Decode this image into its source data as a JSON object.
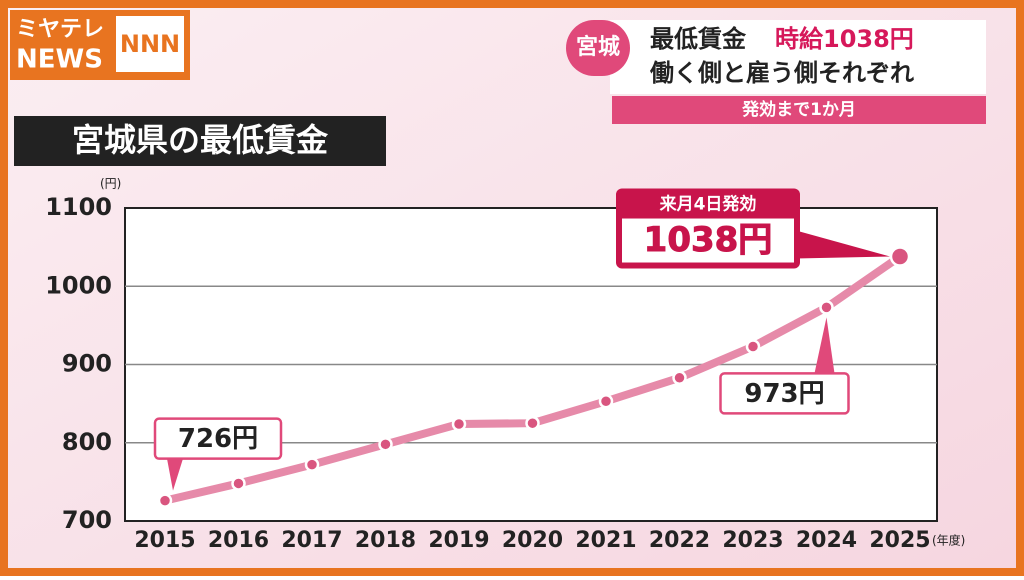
{
  "header": {
    "logo_top": "ミヤテレ",
    "logo_bottom": "NEWS",
    "logo_mark": "NNN",
    "region": "宮城",
    "headline_1": "最低賃金",
    "headline_2": "時給1038円",
    "headline_3": "働く側と雇う側それぞれ",
    "subline": "発効まで1か月"
  },
  "chart_data": {
    "type": "line",
    "title": "宮城県の最低賃金",
    "y_unit": "(円)",
    "x_unit": "(年度)",
    "annotation": "来月4日発効",
    "categories": [
      "2015",
      "2016",
      "2017",
      "2018",
      "2019",
      "2020",
      "2021",
      "2022",
      "2023",
      "2024",
      "2025"
    ],
    "series": [
      {
        "name": "最低賃金",
        "color": "#e68aa9",
        "values": [
          726,
          748,
          772,
          798,
          824,
          825,
          853,
          883,
          923,
          973,
          1038
        ],
        "value_labels": [
          "726円",
          null,
          null,
          null,
          null,
          null,
          null,
          null,
          null,
          "973円",
          "1038円"
        ]
      }
    ],
    "ylim": [
      700,
      1100
    ],
    "yticks": [
      700,
      800,
      900,
      1000,
      1100
    ],
    "grid": true
  }
}
